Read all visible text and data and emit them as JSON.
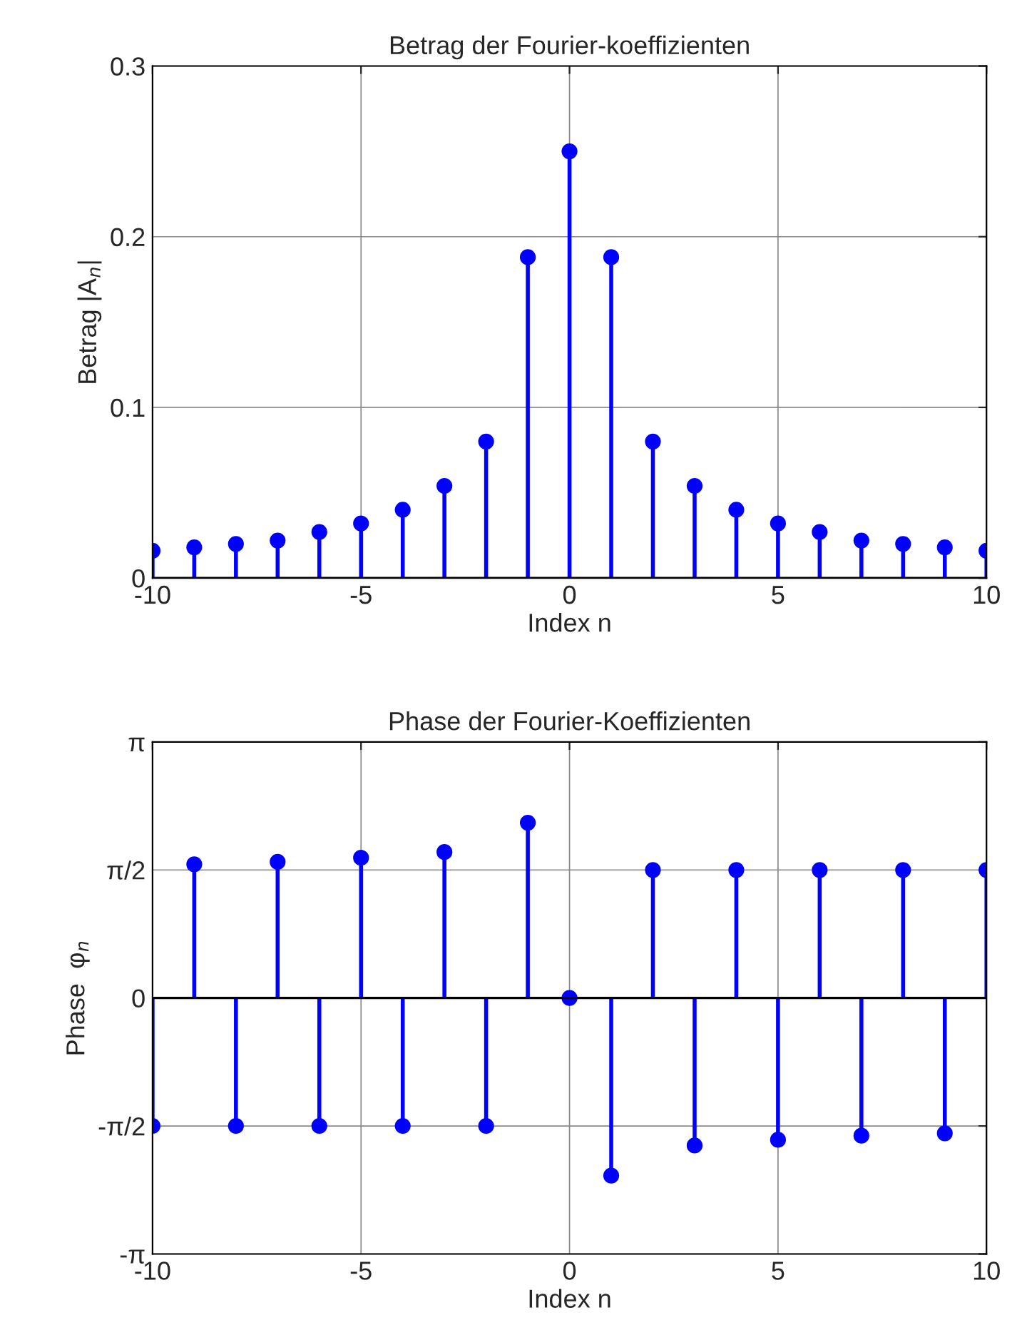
{
  "chart_data": [
    {
      "type": "lollipop",
      "title": "Betrag der Fourier-koeffizienten",
      "xlabel": "Index n",
      "ylabel": "Betrag |A$_{n}$|",
      "x": [
        -10,
        -9,
        -8,
        -7,
        -6,
        -5,
        -4,
        -3,
        -2,
        -1,
        0,
        1,
        2,
        3,
        4,
        5,
        6,
        7,
        8,
        9,
        10
      ],
      "series": [
        {
          "color": "#0000ff",
          "values": [
            0.016,
            0.018,
            0.02,
            0.022,
            0.027,
            0.032,
            0.04,
            0.054,
            0.08,
            0.188,
            0.25,
            0.188,
            0.08,
            0.054,
            0.04,
            0.032,
            0.027,
            0.022,
            0.02,
            0.018,
            0.016
          ]
        }
      ],
      "xlim": [
        -10,
        10
      ],
      "xticks": [
        -10,
        -5,
        0,
        5,
        10
      ],
      "ylim": [
        0,
        0.3
      ],
      "yticks": [
        0,
        0.1,
        0.2,
        0.3
      ],
      "grid": true,
      "marker": "circle",
      "legend": false
    },
    {
      "type": "lollipop",
      "title": "Phase der Fourier-Koeffizienten",
      "xlabel": "Index n",
      "ylabel": "Phase  φ$_{n}$",
      "x": [
        -10,
        -9,
        -8,
        -7,
        -6,
        -5,
        -4,
        -3,
        -2,
        -1,
        0,
        1,
        2,
        3,
        4,
        5,
        6,
        7,
        8,
        9,
        10
      ],
      "series": [
        {
          "color": "#0000ff",
          "values": [
            -1.57,
            1.64,
            -1.57,
            1.67,
            -1.57,
            1.72,
            -1.57,
            1.79,
            -1.57,
            2.15,
            0,
            -2.18,
            1.57,
            -1.81,
            1.57,
            -1.74,
            1.57,
            -1.69,
            1.57,
            -1.66,
            1.57
          ]
        }
      ],
      "xlim": [
        -10,
        10
      ],
      "xticks": [
        -10,
        -5,
        0,
        5,
        10
      ],
      "ylim": [
        -3.1416,
        3.1416
      ],
      "yticks": [
        {
          "value": -3.1416,
          "label": "-π"
        },
        {
          "value": -1.5708,
          "label": "-π/2"
        },
        {
          "value": 0,
          "label": "0"
        },
        {
          "value": 1.5708,
          "label": "π/2"
        },
        {
          "value": 3.1416,
          "label": "π"
        }
      ],
      "grid": true,
      "marker": "circle",
      "legend": false
    }
  ]
}
